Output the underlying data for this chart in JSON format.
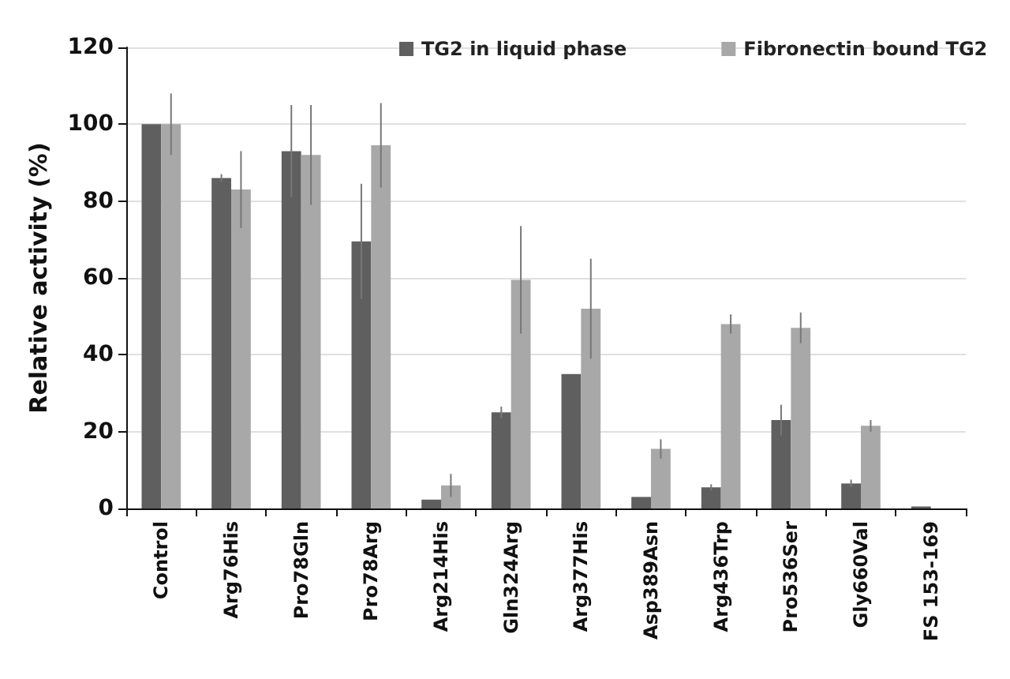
{
  "chart_data": {
    "type": "bar",
    "ylabel": "Relative activity (%)",
    "categories": [
      "Control",
      "Arg76His",
      "Pro78Gln",
      "Pro78Arg",
      "Arg214His",
      "Gln324Arg",
      "Arg377His",
      "Asp389Asn",
      "Arg436Trp",
      "Pro536Ser",
      "Gly660Val",
      "FS 153-169"
    ],
    "series": [
      {
        "name": "TG2 in liquid phase",
        "color": "#5f5f5f",
        "values": [
          100,
          86,
          93,
          69.5,
          2.3,
          25,
          35,
          3,
          5.5,
          23,
          6.5,
          0.5
        ],
        "errors": [
          null,
          1,
          12,
          15,
          null,
          1.5,
          null,
          null,
          0.8,
          4,
          1,
          null
        ]
      },
      {
        "name": "Fibronectin bound TG2",
        "color": "#a8a8a8",
        "values": [
          100,
          83,
          92,
          94.5,
          6,
          59.5,
          52,
          15.5,
          48,
          47,
          21.5,
          0
        ],
        "errors": [
          8,
          10,
          13,
          11,
          3,
          14,
          13,
          2.5,
          2.5,
          4,
          1.5,
          null
        ]
      }
    ],
    "ylim": [
      0,
      120
    ],
    "yticks": [
      0,
      20,
      40,
      60,
      80,
      100,
      120
    ],
    "grid": "y",
    "legend": "top"
  }
}
